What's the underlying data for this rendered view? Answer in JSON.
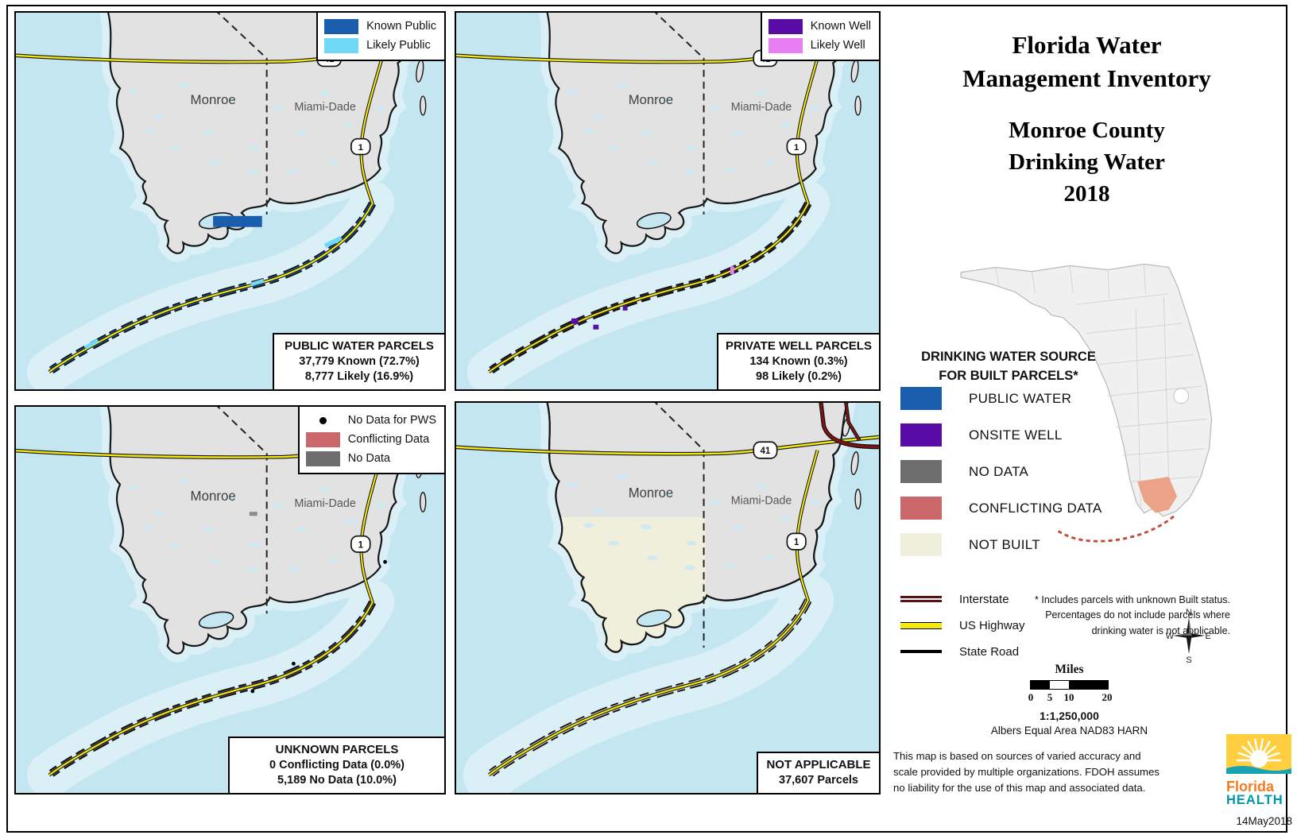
{
  "title": {
    "lines": [
      "Florida Water",
      "Management Inventory"
    ]
  },
  "subtitle": {
    "lines": [
      "Monroe County",
      "Drinking Water",
      "2018"
    ]
  },
  "map_labels": {
    "monroe": "Monroe",
    "miami_dade": "Miami-Dade",
    "us41": "41",
    "us1": "1"
  },
  "panels": {
    "public": {
      "legend": [
        {
          "label": "Known Public",
          "color": "#1a5dad"
        },
        {
          "label": "Likely Public",
          "color": "#70d9f8"
        }
      ],
      "stats": {
        "title": "PUBLIC WATER PARCELS",
        "lines": [
          "37,779 Known (72.7%)",
          "8,777 Likely (16.9%)"
        ]
      }
    },
    "well": {
      "legend": [
        {
          "label": "Known Well",
          "color": "#5a0ca6"
        },
        {
          "label": "Likely Well",
          "color": "#e77ef2"
        }
      ],
      "stats": {
        "title": "PRIVATE WELL PARCELS",
        "lines": [
          "134 Known (0.3%)",
          "98 Likely (0.2%)"
        ]
      }
    },
    "unknown": {
      "legend": [
        {
          "label": "No Data for PWS"
        },
        {
          "label": "Conflicting Data",
          "color": "#c9676b"
        },
        {
          "label": "No Data",
          "color": "#6e6e6e"
        }
      ],
      "stats": {
        "title": "UNKNOWN PARCELS",
        "lines": [
          "0 Conflicting Data (0.0%)",
          "5,189 No Data (10.0%)"
        ]
      }
    },
    "na": {
      "stats": {
        "title": "NOT APPLICABLE",
        "lines": [
          "37,607 Parcels"
        ]
      }
    }
  },
  "sidebar": {
    "legend_heading": [
      "DRINKING WATER SOURCE",
      "FOR BUILT PARCELS*"
    ],
    "legend_items": [
      {
        "label": "PUBLIC WATER",
        "color": "#1a5dad"
      },
      {
        "label": "ONSITE WELL",
        "color": "#5a0ca6"
      },
      {
        "label": "NO DATA",
        "color": "#6e6e6e"
      },
      {
        "label": "CONFLICTING DATA",
        "color": "#c9676b"
      },
      {
        "label": "NOT BUILT",
        "color": "#f0efdb"
      }
    ],
    "roads": [
      {
        "label": "Interstate"
      },
      {
        "label": "US Highway"
      },
      {
        "label": "State Road"
      }
    ],
    "footnote": [
      "* Includes parcels with unknown Built status.",
      "Percentages do not include parcels where",
      "drinking water is not applicable."
    ],
    "compass": {
      "n": "N",
      "e": "E",
      "s": "S",
      "w": "W"
    },
    "scale": {
      "miles": "Miles",
      "ticks": [
        "0",
        "5",
        "10",
        "20"
      ],
      "ratio": "1:1,250,000",
      "projection": "Albers Equal Area NAD83 HARN"
    },
    "disclaimer": [
      "This map is based on sources of varied accuracy and",
      "scale provided by multiple organizations. FDOH assumes",
      "no liability for the use of this map and associated data."
    ],
    "logo": {
      "line1": "Florida",
      "line2": "HEALTH"
    },
    "date": "14May2018"
  },
  "colors": {
    "water": "#c3e6f0",
    "shallow_water": "#daeff6",
    "land": "#e2e2e2",
    "known_public": "#1a5dad",
    "likely_public": "#70d9f8",
    "known_well": "#5a0ca6",
    "likely_well": "#e77ef2",
    "conflicting_data": "#c9676b",
    "no_data": "#6e6e6e",
    "not_built": "#f0efdb",
    "interstate": "#7c1414",
    "us_highway": "#f4e813",
    "inset_monroe": "#eba287",
    "inset_keys": "#c4493f"
  }
}
